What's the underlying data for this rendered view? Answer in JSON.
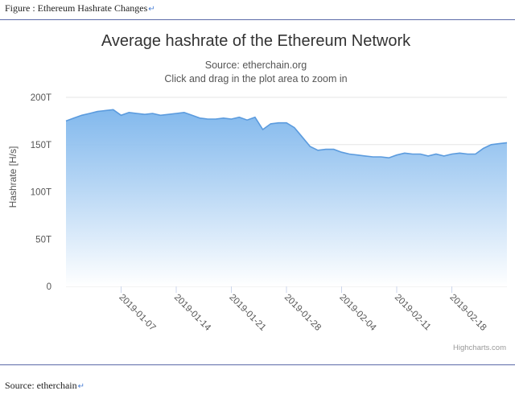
{
  "document": {
    "caption": "Figure : Ethereum Hashrate Changes",
    "source": "Source: etherchain",
    "paragraph_mark": "↵"
  },
  "chart_data": {
    "type": "area",
    "title": "Average hashrate of the Ethereum Network",
    "subtitle_lines": [
      "Source: etherchain.org",
      "Click and drag in the plot area to zoom in"
    ],
    "xlabel": "",
    "ylabel": "Hashrate [H/s]",
    "ylim": [
      0,
      200
    ],
    "yticks": [
      {
        "value": 0,
        "label": "0"
      },
      {
        "value": 50,
        "label": "50T"
      },
      {
        "value": 100,
        "label": "100T"
      },
      {
        "value": 150,
        "label": "150T"
      },
      {
        "value": 200,
        "label": "200T"
      }
    ],
    "xlim": [
      "2018-12-31",
      "2019-02-25"
    ],
    "xticks": [
      "2019-01-07",
      "2019-01-14",
      "2019-01-21",
      "2019-01-28",
      "2019-02-04",
      "2019-02-11",
      "2019-02-18"
    ],
    "grid": true,
    "legend": "none",
    "credits": "Highcharts.com",
    "colors": {
      "line": "#5b9bde",
      "fill_top": "#7cb5ec",
      "fill_bottom": "#ffffff",
      "grid": "#e6e6e6"
    },
    "series": [
      {
        "x": [
          "2018-12-31",
          "2019-01-01",
          "2019-01-02",
          "2019-01-03",
          "2019-01-04",
          "2019-01-05",
          "2019-01-06",
          "2019-01-07",
          "2019-01-08",
          "2019-01-09",
          "2019-01-10",
          "2019-01-11",
          "2019-01-12",
          "2019-01-13",
          "2019-01-14",
          "2019-01-15",
          "2019-01-16",
          "2019-01-17",
          "2019-01-18",
          "2019-01-19",
          "2019-01-20",
          "2019-01-21",
          "2019-01-22",
          "2019-01-23",
          "2019-01-24",
          "2019-01-25",
          "2019-01-26",
          "2019-01-27",
          "2019-01-28",
          "2019-01-29",
          "2019-01-30",
          "2019-01-31",
          "2019-02-01",
          "2019-02-02",
          "2019-02-03",
          "2019-02-04",
          "2019-02-05",
          "2019-02-06",
          "2019-02-07",
          "2019-02-08",
          "2019-02-09",
          "2019-02-10",
          "2019-02-11",
          "2019-02-12",
          "2019-02-13",
          "2019-02-14",
          "2019-02-15",
          "2019-02-16",
          "2019-02-17",
          "2019-02-18",
          "2019-02-19",
          "2019-02-20",
          "2019-02-21",
          "2019-02-22",
          "2019-02-23",
          "2019-02-24",
          "2019-02-25"
        ],
        "values": [
          175,
          178,
          181,
          183,
          185,
          186,
          187,
          181,
          184,
          183,
          182,
          183,
          181,
          182,
          183,
          184,
          181,
          178,
          177,
          177,
          178,
          177,
          179,
          176,
          179,
          166,
          172,
          173,
          173,
          168,
          158,
          148,
          144,
          145,
          145,
          142,
          140,
          139,
          138,
          137,
          137,
          136,
          139,
          141,
          140,
          140,
          138,
          140,
          138,
          140,
          141,
          140,
          140,
          146,
          150,
          151,
          152
        ]
      }
    ]
  }
}
